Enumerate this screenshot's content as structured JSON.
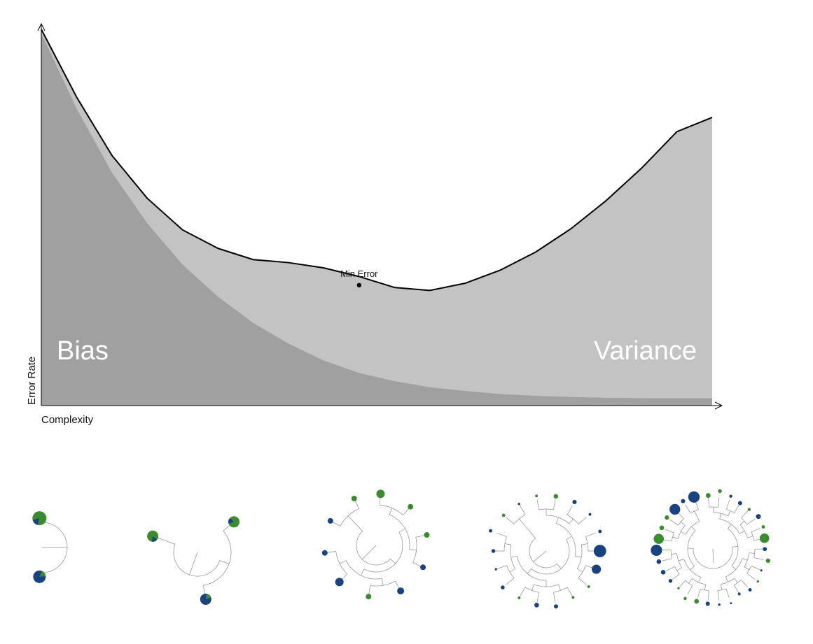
{
  "chart_data": {
    "type": "area",
    "title": "",
    "xlabel": "Complexity",
    "ylabel": "Error Rate",
    "x": [
      0,
      1,
      2,
      3,
      4,
      5,
      6,
      7,
      8,
      9,
      10,
      11,
      12,
      13,
      14,
      15,
      16,
      17,
      18,
      19
    ],
    "xlim": [
      0,
      19
    ],
    "ylim": [
      0,
      100
    ],
    "grid": false,
    "legend": "none",
    "series": [
      {
        "name": "Bias",
        "values": [
          99,
          79,
          62,
          48.5,
          37.5,
          29,
          22,
          16.5,
          12,
          8.7,
          6.5,
          4.9,
          3.9,
          3.1,
          2.6,
          2.3,
          2.1,
          2.0,
          2.0,
          2.0
        ],
        "color": "#a0a0a0"
      },
      {
        "name": "Variance",
        "values": [
          1,
          3,
          4.5,
          6.6,
          9.2,
          12.8,
          16.8,
          21.5,
          24.6,
          25.6,
          24.9,
          25.7,
          28.6,
          32.9,
          38.2,
          44.7,
          52.4,
          61.1,
          70.8,
          74.6
        ],
        "color": "#c3c3c3"
      }
    ],
    "total_line_color": "#000000",
    "annotations": [
      {
        "text": "Min Error",
        "x": 9,
        "y": 32
      },
      {
        "text": "Bias",
        "position": "lower-left"
      },
      {
        "text": "Variance",
        "position": "lower-right"
      }
    ]
  },
  "tree_glyphs": {
    "blue": "#1a4280",
    "green": "#3b8c2e"
  }
}
